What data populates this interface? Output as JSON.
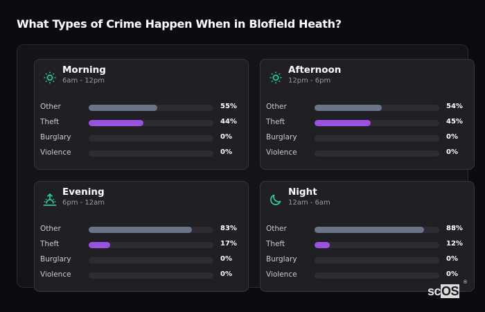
{
  "title": "What Types of Crime Happen When in Blofield Heath?",
  "colors": {
    "other": "#6b7589",
    "theft": "#9b51e0",
    "icon": "#2bc79a",
    "track": "#2c2c32"
  },
  "cards": [
    {
      "name": "Morning",
      "range": "6am - 12pm",
      "icon": "sun-icon",
      "rows": [
        {
          "label": "Other",
          "value": 55,
          "pct": "55%"
        },
        {
          "label": "Theft",
          "value": 44,
          "pct": "44%"
        },
        {
          "label": "Burglary",
          "value": 0,
          "pct": "0%"
        },
        {
          "label": "Violence",
          "value": 0,
          "pct": "0%"
        }
      ]
    },
    {
      "name": "Afternoon",
      "range": "12pm - 6pm",
      "icon": "sun-icon",
      "rows": [
        {
          "label": "Other",
          "value": 54,
          "pct": "54%"
        },
        {
          "label": "Theft",
          "value": 45,
          "pct": "45%"
        },
        {
          "label": "Burglary",
          "value": 0,
          "pct": "0%"
        },
        {
          "label": "Violence",
          "value": 0,
          "pct": "0%"
        }
      ]
    },
    {
      "name": "Evening",
      "range": "6pm - 12am",
      "icon": "sunset-icon",
      "rows": [
        {
          "label": "Other",
          "value": 83,
          "pct": "83%"
        },
        {
          "label": "Theft",
          "value": 17,
          "pct": "17%"
        },
        {
          "label": "Burglary",
          "value": 0,
          "pct": "0%"
        },
        {
          "label": "Violence",
          "value": 0,
          "pct": "0%"
        }
      ]
    },
    {
      "name": "Night",
      "range": "12am - 6am",
      "icon": "moon-icon",
      "rows": [
        {
          "label": "Other",
          "value": 88,
          "pct": "88%"
        },
        {
          "label": "Theft",
          "value": 12,
          "pct": "12%"
        },
        {
          "label": "Burglary",
          "value": 0,
          "pct": "0%"
        },
        {
          "label": "Violence",
          "value": 0,
          "pct": "0%"
        }
      ]
    }
  ],
  "logo": {
    "prefix": "sc",
    "highlight": "OS",
    "reg": "®"
  },
  "chart_data": {
    "type": "bar",
    "title": "What Types of Crime Happen When in Blofield Heath?",
    "orientation": "horizontal",
    "categories": [
      "Other",
      "Theft",
      "Burglary",
      "Violence"
    ],
    "panels": [
      {
        "name": "Morning",
        "subtitle": "6am - 12pm",
        "values": [
          55,
          44,
          0,
          0
        ]
      },
      {
        "name": "Afternoon",
        "subtitle": "12pm - 6pm",
        "values": [
          54,
          45,
          0,
          0
        ]
      },
      {
        "name": "Evening",
        "subtitle": "6pm - 12am",
        "values": [
          83,
          17,
          0,
          0
        ]
      },
      {
        "name": "Night",
        "subtitle": "12am - 6am",
        "values": [
          88,
          12,
          0,
          0
        ]
      }
    ],
    "unit": "%",
    "xlim": [
      0,
      100
    ],
    "grid": false,
    "legend": null
  }
}
